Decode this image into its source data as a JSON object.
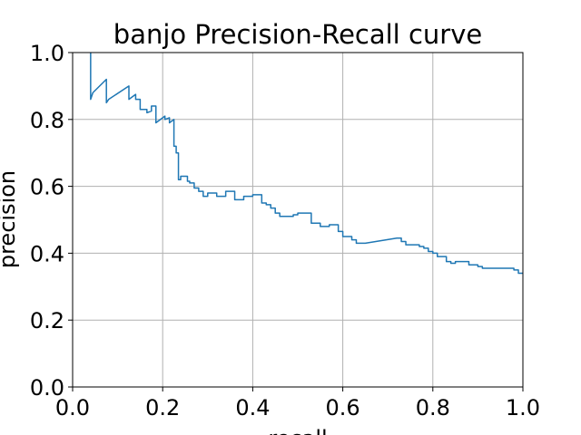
{
  "chart_data": {
    "type": "line",
    "title": "banjo Precision-Recall curve",
    "xlabel": "recall",
    "ylabel": "precision",
    "xlim": [
      0.0,
      1.0
    ],
    "ylim": [
      0.0,
      1.0
    ],
    "xticks": [
      "0.0",
      "0.2",
      "0.4",
      "0.6",
      "0.8",
      "1.0"
    ],
    "yticks": [
      "0.0",
      "0.2",
      "0.4",
      "0.6",
      "0.8",
      "1.0"
    ],
    "grid": true,
    "line_color": "#1f77b4",
    "series": [
      {
        "x": [
          0.04,
          0.04,
          0.045,
          0.075,
          0.075,
          0.08,
          0.125,
          0.125,
          0.14,
          0.14,
          0.15,
          0.15,
          0.165,
          0.165,
          0.175,
          0.175,
          0.185,
          0.185,
          0.205,
          0.205,
          0.215,
          0.215,
          0.225,
          0.225,
          0.23,
          0.23,
          0.235,
          0.235,
          0.24,
          0.24,
          0.255,
          0.255,
          0.26,
          0.26,
          0.27,
          0.27,
          0.28,
          0.28,
          0.29,
          0.29,
          0.3,
          0.3,
          0.32,
          0.32,
          0.34,
          0.34,
          0.36,
          0.36,
          0.38,
          0.38,
          0.4,
          0.4,
          0.42,
          0.42,
          0.43,
          0.43,
          0.44,
          0.44,
          0.45,
          0.45,
          0.46,
          0.46,
          0.49,
          0.49,
          0.5,
          0.5,
          0.53,
          0.53,
          0.55,
          0.55,
          0.57,
          0.57,
          0.59,
          0.59,
          0.6,
          0.6,
          0.62,
          0.62,
          0.63,
          0.63,
          0.65,
          0.72,
          0.73,
          0.73,
          0.74,
          0.74,
          0.77,
          0.77,
          0.78,
          0.78,
          0.79,
          0.79,
          0.8,
          0.8,
          0.81,
          0.81,
          0.83,
          0.83,
          0.84,
          0.84,
          0.85,
          0.85,
          0.88,
          0.88,
          0.9,
          0.9,
          0.91,
          0.91,
          0.92,
          0.92,
          0.98,
          0.98,
          0.99,
          0.99,
          1.0
        ],
        "y": [
          1.0,
          0.86,
          0.88,
          0.92,
          0.85,
          0.86,
          0.9,
          0.86,
          0.875,
          0.86,
          0.86,
          0.83,
          0.83,
          0.82,
          0.825,
          0.84,
          0.84,
          0.79,
          0.81,
          0.8,
          0.805,
          0.79,
          0.8,
          0.72,
          0.72,
          0.7,
          0.7,
          0.62,
          0.62,
          0.63,
          0.63,
          0.615,
          0.615,
          0.61,
          0.61,
          0.595,
          0.595,
          0.585,
          0.585,
          0.57,
          0.57,
          0.58,
          0.58,
          0.57,
          0.57,
          0.585,
          0.585,
          0.56,
          0.56,
          0.57,
          0.57,
          0.575,
          0.575,
          0.55,
          0.55,
          0.545,
          0.545,
          0.535,
          0.535,
          0.52,
          0.52,
          0.51,
          0.51,
          0.515,
          0.515,
          0.52,
          0.52,
          0.49,
          0.49,
          0.48,
          0.48,
          0.485,
          0.485,
          0.465,
          0.465,
          0.45,
          0.45,
          0.44,
          0.44,
          0.43,
          0.43,
          0.445,
          0.445,
          0.435,
          0.435,
          0.425,
          0.425,
          0.42,
          0.42,
          0.415,
          0.415,
          0.405,
          0.405,
          0.4,
          0.4,
          0.39,
          0.39,
          0.375,
          0.375,
          0.37,
          0.37,
          0.375,
          0.375,
          0.365,
          0.365,
          0.36,
          0.36,
          0.355,
          0.355,
          0.355,
          0.355,
          0.35,
          0.35,
          0.34,
          0.34
        ]
      }
    ]
  }
}
